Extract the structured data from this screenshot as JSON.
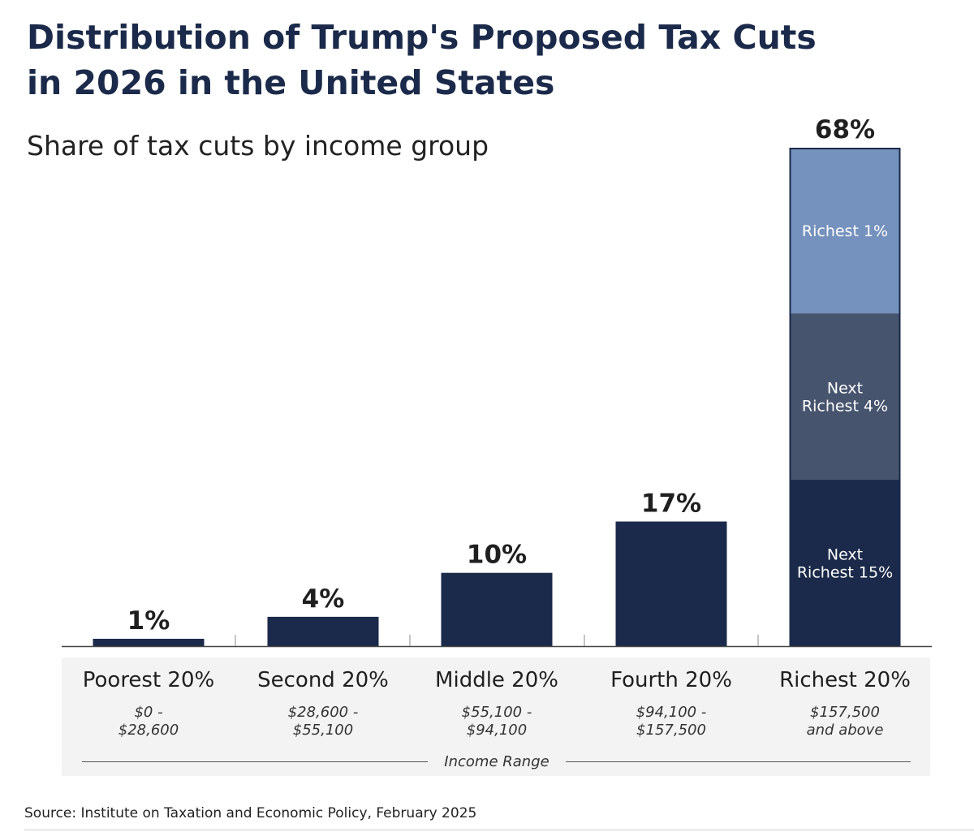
{
  "title_lines": [
    "Distribution of Trump's Proposed Tax Cuts",
    "in 2026 in the United States"
  ],
  "subtitle": "Share of tax cuts by income group",
  "source": "Source: Institute on Taxation and Economic Policy, February 2025",
  "colors": {
    "bar": "#1b2a4a",
    "segment_next_richest_4": "#47546e",
    "segment_richest_1": "#7591bd",
    "category_band": "#f3f3f3",
    "text": "#1b2a4a"
  },
  "chart_data": {
    "type": "bar",
    "categories": [
      "Poorest 20%",
      "Second 20%",
      "Middle 20%",
      "Fourth 20%",
      "Richest 20%"
    ],
    "ranges": [
      [
        "$0 -",
        "$28,600"
      ],
      [
        "$28,600 -",
        "$55,100"
      ],
      [
        "$55,100 -",
        "$94,100"
      ],
      [
        "$94,100 -",
        "$157,500"
      ],
      [
        "$157,500",
        "and above"
      ]
    ],
    "values": [
      1,
      4,
      10,
      17,
      68
    ],
    "value_labels": [
      "1%",
      "4%",
      "10%",
      "17%",
      "68%"
    ],
    "stacked_segments": {
      "category": "Richest 20%",
      "segments": [
        {
          "name_lines": [
            "Next",
            "Richest 15%"
          ],
          "value": 22.7,
          "color": "#1b2a4a"
        },
        {
          "name_lines": [
            "Next",
            "Richest 4%"
          ],
          "value": 22.7,
          "color": "#47546e"
        },
        {
          "name_lines": [
            "Richest 1%"
          ],
          "value": 22.6,
          "color": "#7591bd"
        }
      ]
    },
    "xlabel": "Income Range",
    "ylabel": "",
    "ylim": [
      0,
      68
    ],
    "grid": false,
    "legend": "none"
  }
}
